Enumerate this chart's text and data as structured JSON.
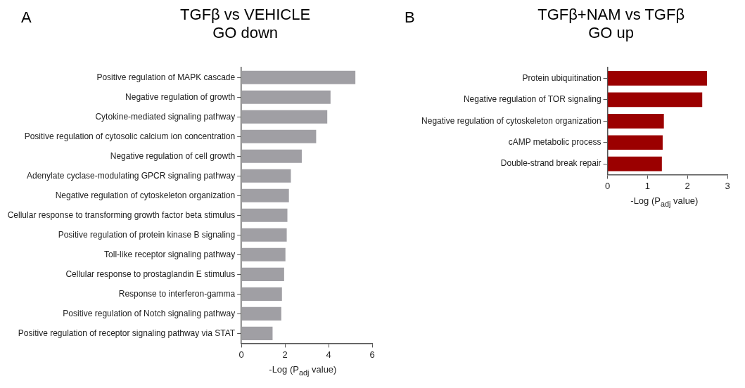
{
  "chart_data": [
    {
      "type": "bar",
      "orientation": "horizontal",
      "title": "TGFβ vs VEHICLE",
      "subtitle": "GO down",
      "annotations": [
        "A"
      ],
      "xlabel": "-Log (P$_{adj}$ value)",
      "categories": [
        "Positive regulation of MAPK cascade",
        "Negative regulation of growth",
        "Cytokine-mediated signaling pathway",
        "Positive regulation of cytosolic calcium ion concentration",
        "Negative regulation of cell growth",
        "Adenylate cyclase-modulating GPCR signaling pathway",
        "Negative regulation of cytoskeleton organization",
        "Cellular response to transforming growth factor beta stimulus",
        "Positive regulation of protein kinase B signaling",
        "Toll-like receptor signaling pathway",
        "Cellular response to prostaglandin E stimulus",
        "Response to interferon-gamma",
        "Positive regulation of Notch signaling pathway",
        "Positive regulation of receptor signaling pathway via STAT"
      ],
      "values": [
        5.23,
        4.09,
        3.94,
        3.43,
        2.77,
        2.27,
        2.18,
        2.11,
        2.08,
        2.02,
        1.96,
        1.86,
        1.83,
        1.43
      ],
      "color": "#a09fa4",
      "xlim": [
        0,
        6
      ],
      "xticks": [
        0,
        2,
        4,
        6
      ],
      "grid": false,
      "legend": false
    },
    {
      "type": "bar",
      "orientation": "horizontal",
      "title": "TGFβ+NAM vs TGFβ",
      "subtitle": "GO up",
      "annotations": [
        "B"
      ],
      "xlabel": "-Log (P$_{adj}$ value)",
      "categories": [
        "Protein ubiquitination",
        "Negative regulation of TOR signaling",
        "Negative regulation of cytoskeleton organization",
        "cAMP metabolic process",
        "Double-strand break repair"
      ],
      "values": [
        2.49,
        2.37,
        1.41,
        1.38,
        1.36
      ],
      "color": "#9b0000",
      "xlim": [
        0,
        3
      ],
      "xticks": [
        0,
        1,
        2,
        3
      ],
      "grid": false,
      "legend": false
    }
  ]
}
